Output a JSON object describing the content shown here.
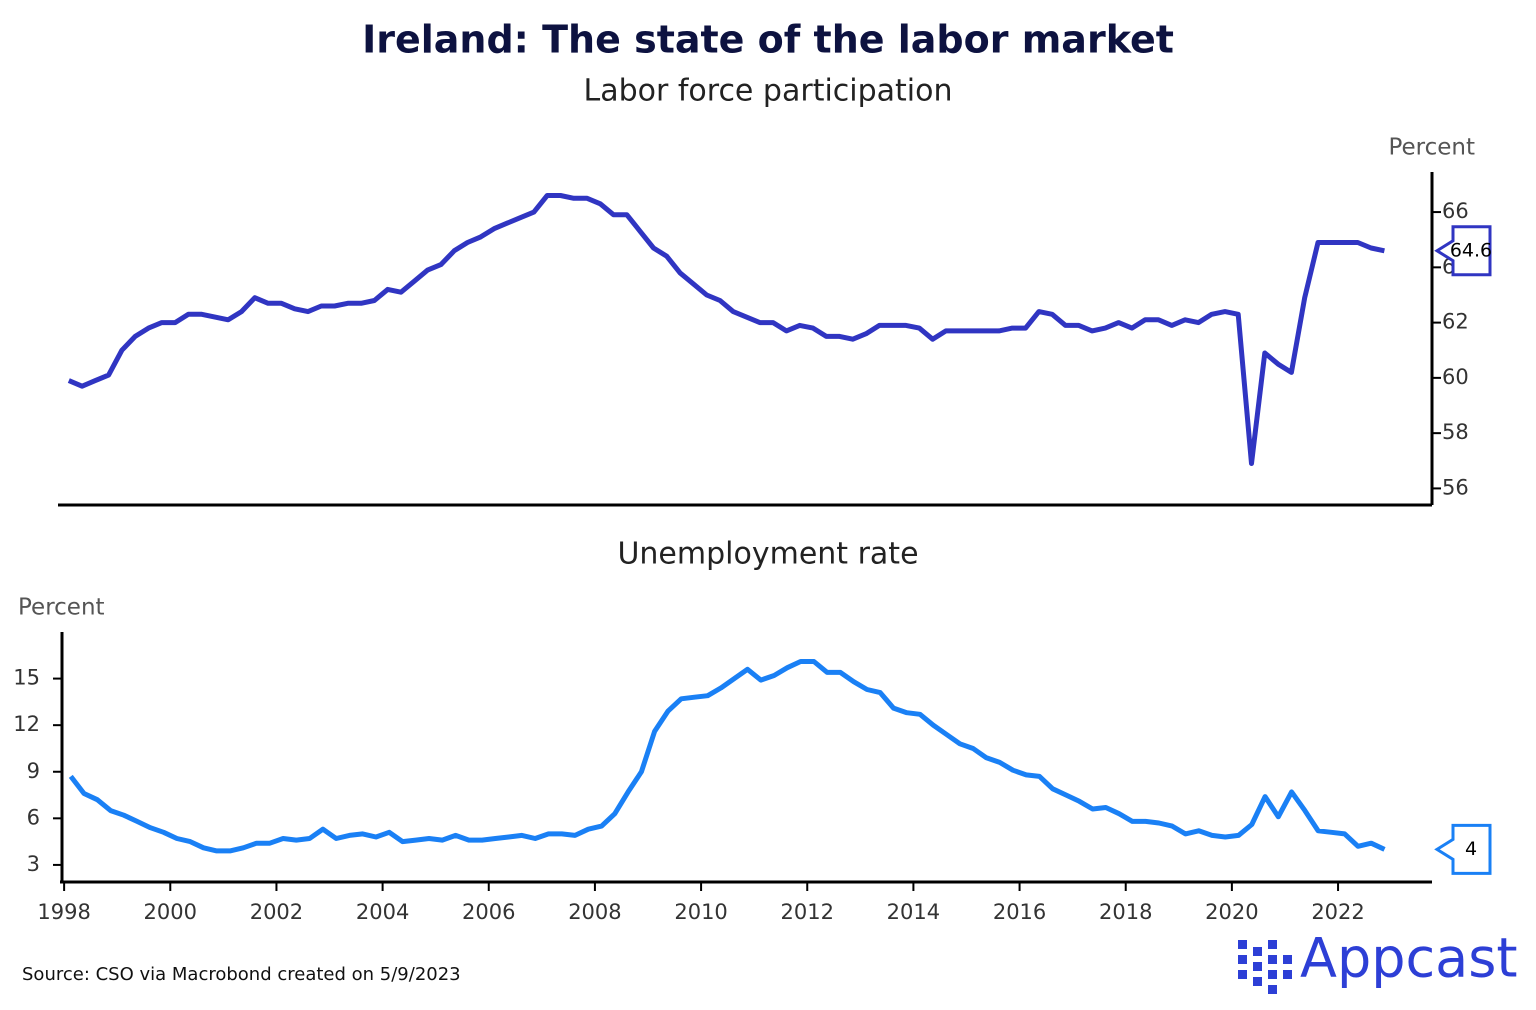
{
  "title": "Ireland: The state of the labor market",
  "source": "Source: CSO via Macrobond created on 5/9/2023",
  "logo": "Appcast",
  "chart_data": [
    {
      "type": "line",
      "title": "Labor force participation",
      "y_label": "Percent",
      "y_axis_side": "right",
      "color": "#3035c2",
      "xlim": [
        1997.96,
        2023.77
      ],
      "ylim": [
        55.4,
        67.45
      ],
      "yticks": [
        56,
        58,
        60,
        62,
        64,
        66
      ],
      "x": [
        1998.125,
        1998.375,
        1998.625,
        1998.875,
        1999.125,
        1999.375,
        1999.625,
        1999.875,
        2000.125,
        2000.375,
        2000.625,
        2000.875,
        2001.125,
        2001.375,
        2001.625,
        2001.875,
        2002.125,
        2002.375,
        2002.625,
        2002.875,
        2003.125,
        2003.375,
        2003.625,
        2003.875,
        2004.125,
        2004.375,
        2004.625,
        2004.875,
        2005.125,
        2005.375,
        2005.625,
        2005.875,
        2006.125,
        2006.375,
        2006.625,
        2006.875,
        2007.125,
        2007.375,
        2007.625,
        2007.875,
        2008.125,
        2008.375,
        2008.625,
        2008.875,
        2009.125,
        2009.375,
        2009.625,
        2009.875,
        2010.125,
        2010.375,
        2010.625,
        2010.875,
        2011.125,
        2011.375,
        2011.625,
        2011.875,
        2012.125,
        2012.375,
        2012.625,
        2012.875,
        2013.125,
        2013.375,
        2013.625,
        2013.875,
        2014.125,
        2014.375,
        2014.625,
        2014.875,
        2015.125,
        2015.375,
        2015.625,
        2015.875,
        2016.125,
        2016.375,
        2016.625,
        2016.875,
        2017.125,
        2017.375,
        2017.625,
        2017.875,
        2018.125,
        2018.375,
        2018.625,
        2018.875,
        2019.125,
        2019.375,
        2019.625,
        2019.875,
        2020.125,
        2020.375,
        2020.625,
        2020.875,
        2021.125,
        2021.375,
        2021.625,
        2021.875,
        2022.125,
        2022.375,
        2022.625,
        2022.875
      ],
      "values": [
        59.9,
        59.7,
        59.9,
        60.1,
        61.0,
        61.5,
        61.8,
        62.0,
        62.0,
        62.3,
        62.3,
        62.2,
        62.1,
        62.4,
        62.9,
        62.7,
        62.7,
        62.5,
        62.4,
        62.6,
        62.6,
        62.7,
        62.7,
        62.8,
        63.2,
        63.1,
        63.5,
        63.9,
        64.1,
        64.6,
        64.9,
        65.1,
        65.4,
        65.6,
        65.8,
        66.0,
        66.6,
        66.6,
        66.5,
        66.5,
        66.3,
        65.9,
        65.9,
        65.3,
        64.7,
        64.4,
        63.8,
        63.4,
        63.0,
        62.8,
        62.4,
        62.2,
        62.0,
        62.0,
        61.7,
        61.9,
        61.8,
        61.5,
        61.5,
        61.4,
        61.6,
        61.9,
        61.9,
        61.9,
        61.8,
        61.4,
        61.7,
        61.7,
        61.7,
        61.7,
        61.7,
        61.8,
        61.8,
        62.4,
        62.3,
        61.9,
        61.9,
        61.7,
        61.8,
        62.0,
        61.8,
        62.1,
        62.1,
        61.9,
        62.1,
        62.0,
        62.3,
        62.4,
        62.3,
        56.9,
        60.9,
        60.5,
        60.2,
        62.9,
        64.9,
        64.9,
        64.9,
        64.9,
        64.7,
        64.6
      ]
    },
    {
      "type": "line",
      "title": "Unemployment rate",
      "y_label": "Percent",
      "y_axis_side": "left",
      "color": "#1a80f5",
      "xlim": [
        1997.96,
        2023.77
      ],
      "xticks": [
        1998,
        2000,
        2002,
        2004,
        2006,
        2008,
        2010,
        2012,
        2014,
        2016,
        2018,
        2020,
        2022
      ],
      "ylim": [
        1.9,
        18.0
      ],
      "yticks": [
        3,
        6,
        9,
        12,
        15
      ],
      "x": [
        1998.125,
        1998.375,
        1998.625,
        1998.875,
        1999.125,
        1999.375,
        1999.625,
        1999.875,
        2000.125,
        2000.375,
        2000.625,
        2000.875,
        2001.125,
        2001.375,
        2001.625,
        2001.875,
        2002.125,
        2002.375,
        2002.625,
        2002.875,
        2003.125,
        2003.375,
        2003.625,
        2003.875,
        2004.125,
        2004.375,
        2004.625,
        2004.875,
        2005.125,
        2005.375,
        2005.625,
        2005.875,
        2006.125,
        2006.375,
        2006.625,
        2006.875,
        2007.125,
        2007.375,
        2007.625,
        2007.875,
        2008.125,
        2008.375,
        2008.625,
        2008.875,
        2009.125,
        2009.375,
        2009.625,
        2009.875,
        2010.125,
        2010.375,
        2010.625,
        2010.875,
        2011.125,
        2011.375,
        2011.625,
        2011.875,
        2012.125,
        2012.375,
        2012.625,
        2012.875,
        2013.125,
        2013.375,
        2013.625,
        2013.875,
        2014.125,
        2014.375,
        2014.625,
        2014.875,
        2015.125,
        2015.375,
        2015.625,
        2015.875,
        2016.125,
        2016.375,
        2016.625,
        2016.875,
        2017.125,
        2017.375,
        2017.625,
        2017.875,
        2018.125,
        2018.375,
        2018.625,
        2018.875,
        2019.125,
        2019.375,
        2019.625,
        2019.875,
        2020.125,
        2020.375,
        2020.625,
        2020.875,
        2021.125,
        2021.375,
        2021.625,
        2021.875,
        2022.125,
        2022.375,
        2022.625,
        2022.875
      ],
      "values": [
        8.7,
        7.6,
        7.2,
        6.5,
        6.2,
        5.8,
        5.4,
        5.1,
        4.7,
        4.5,
        4.1,
        3.9,
        3.9,
        4.1,
        4.4,
        4.4,
        4.7,
        4.6,
        4.7,
        5.3,
        4.7,
        4.9,
        5.0,
        4.8,
        5.1,
        4.5,
        4.6,
        4.7,
        4.6,
        4.9,
        4.6,
        4.6,
        4.7,
        4.8,
        4.9,
        4.7,
        5.0,
        5.0,
        4.9,
        5.3,
        5.5,
        6.3,
        7.7,
        9.0,
        11.6,
        12.9,
        13.7,
        13.8,
        13.9,
        14.4,
        15.0,
        15.6,
        14.9,
        15.2,
        15.7,
        16.1,
        16.1,
        15.4,
        15.4,
        14.8,
        14.3,
        14.1,
        13.1,
        12.8,
        12.7,
        12.0,
        11.4,
        10.8,
        10.5,
        9.9,
        9.6,
        9.1,
        8.8,
        8.7,
        7.9,
        7.5,
        7.1,
        6.6,
        6.7,
        6.3,
        5.8,
        5.8,
        5.7,
        5.5,
        5.0,
        5.2,
        4.9,
        4.8,
        4.9,
        5.6,
        7.4,
        6.1,
        7.7,
        6.5,
        5.2,
        5.1,
        5.0,
        4.2,
        4.4,
        4.0
      ]
    }
  ]
}
